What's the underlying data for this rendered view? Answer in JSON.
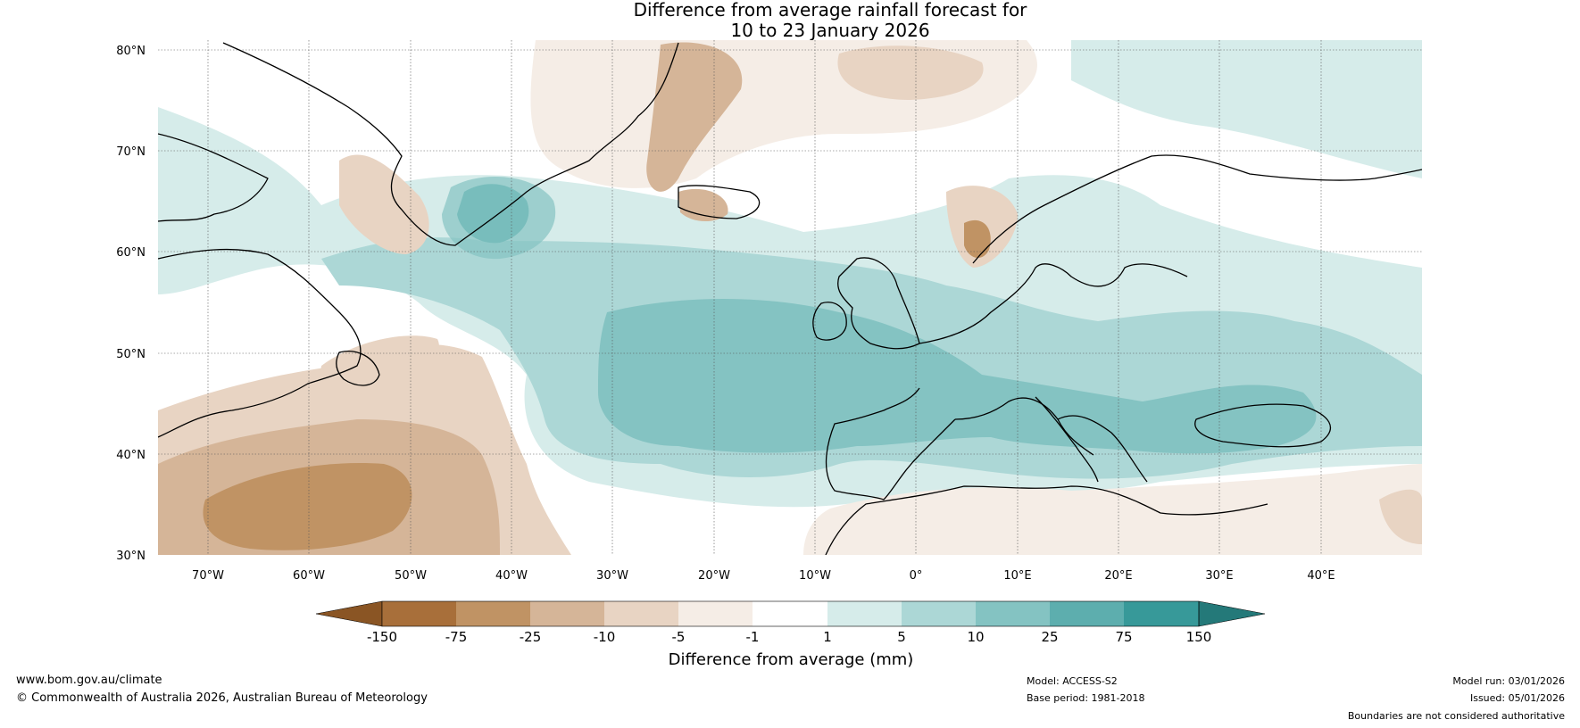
{
  "title": {
    "line1": "Difference from average rainfall forecast for",
    "line2": "10 to 23 January 2026"
  },
  "map": {
    "lat_labels": [
      "80°N",
      "70°N",
      "60°N",
      "50°N",
      "40°N",
      "30°N"
    ],
    "lat_values": [
      80,
      70,
      60,
      50,
      40,
      30
    ],
    "lon_labels": [
      "70°W",
      "60°W",
      "50°W",
      "40°W",
      "30°W",
      "20°W",
      "10°W",
      "0°",
      "10°E",
      "20°E",
      "30°E",
      "40°E"
    ],
    "lon_values": [
      -70,
      -60,
      -50,
      -40,
      -30,
      -20,
      -10,
      0,
      10,
      20,
      30,
      40
    ],
    "lon_range": [
      -75,
      50
    ],
    "lat_range": [
      30,
      81
    ]
  },
  "colorbar": {
    "label": "Difference from average (mm)",
    "ticks": [
      "-150",
      "-75",
      "-25",
      "-10",
      "-5",
      "-1",
      "1",
      "5",
      "10",
      "25",
      "75",
      "150"
    ],
    "colors": [
      "#8a5524",
      "#a86f3a",
      "#c09364",
      "#d5b598",
      "#e8d4c3",
      "#f5ede6",
      "#ffffff",
      "#d6ecea",
      "#acd7d6",
      "#84c3c2",
      "#5daeae",
      "#379999",
      "#247979"
    ]
  },
  "footer": {
    "website": "www.bom.gov.au/climate",
    "copyright": "© Commonwealth of Australia 2026, Australian Bureau of Meteorology",
    "model": "Model: ACCESS-S2",
    "base_period": "Base period: 1981-2018",
    "model_run": "Model run: 03/01/2026",
    "issued": "Issued: 05/01/2026",
    "disclaimer": "Boundaries are not considered authoritative"
  }
}
